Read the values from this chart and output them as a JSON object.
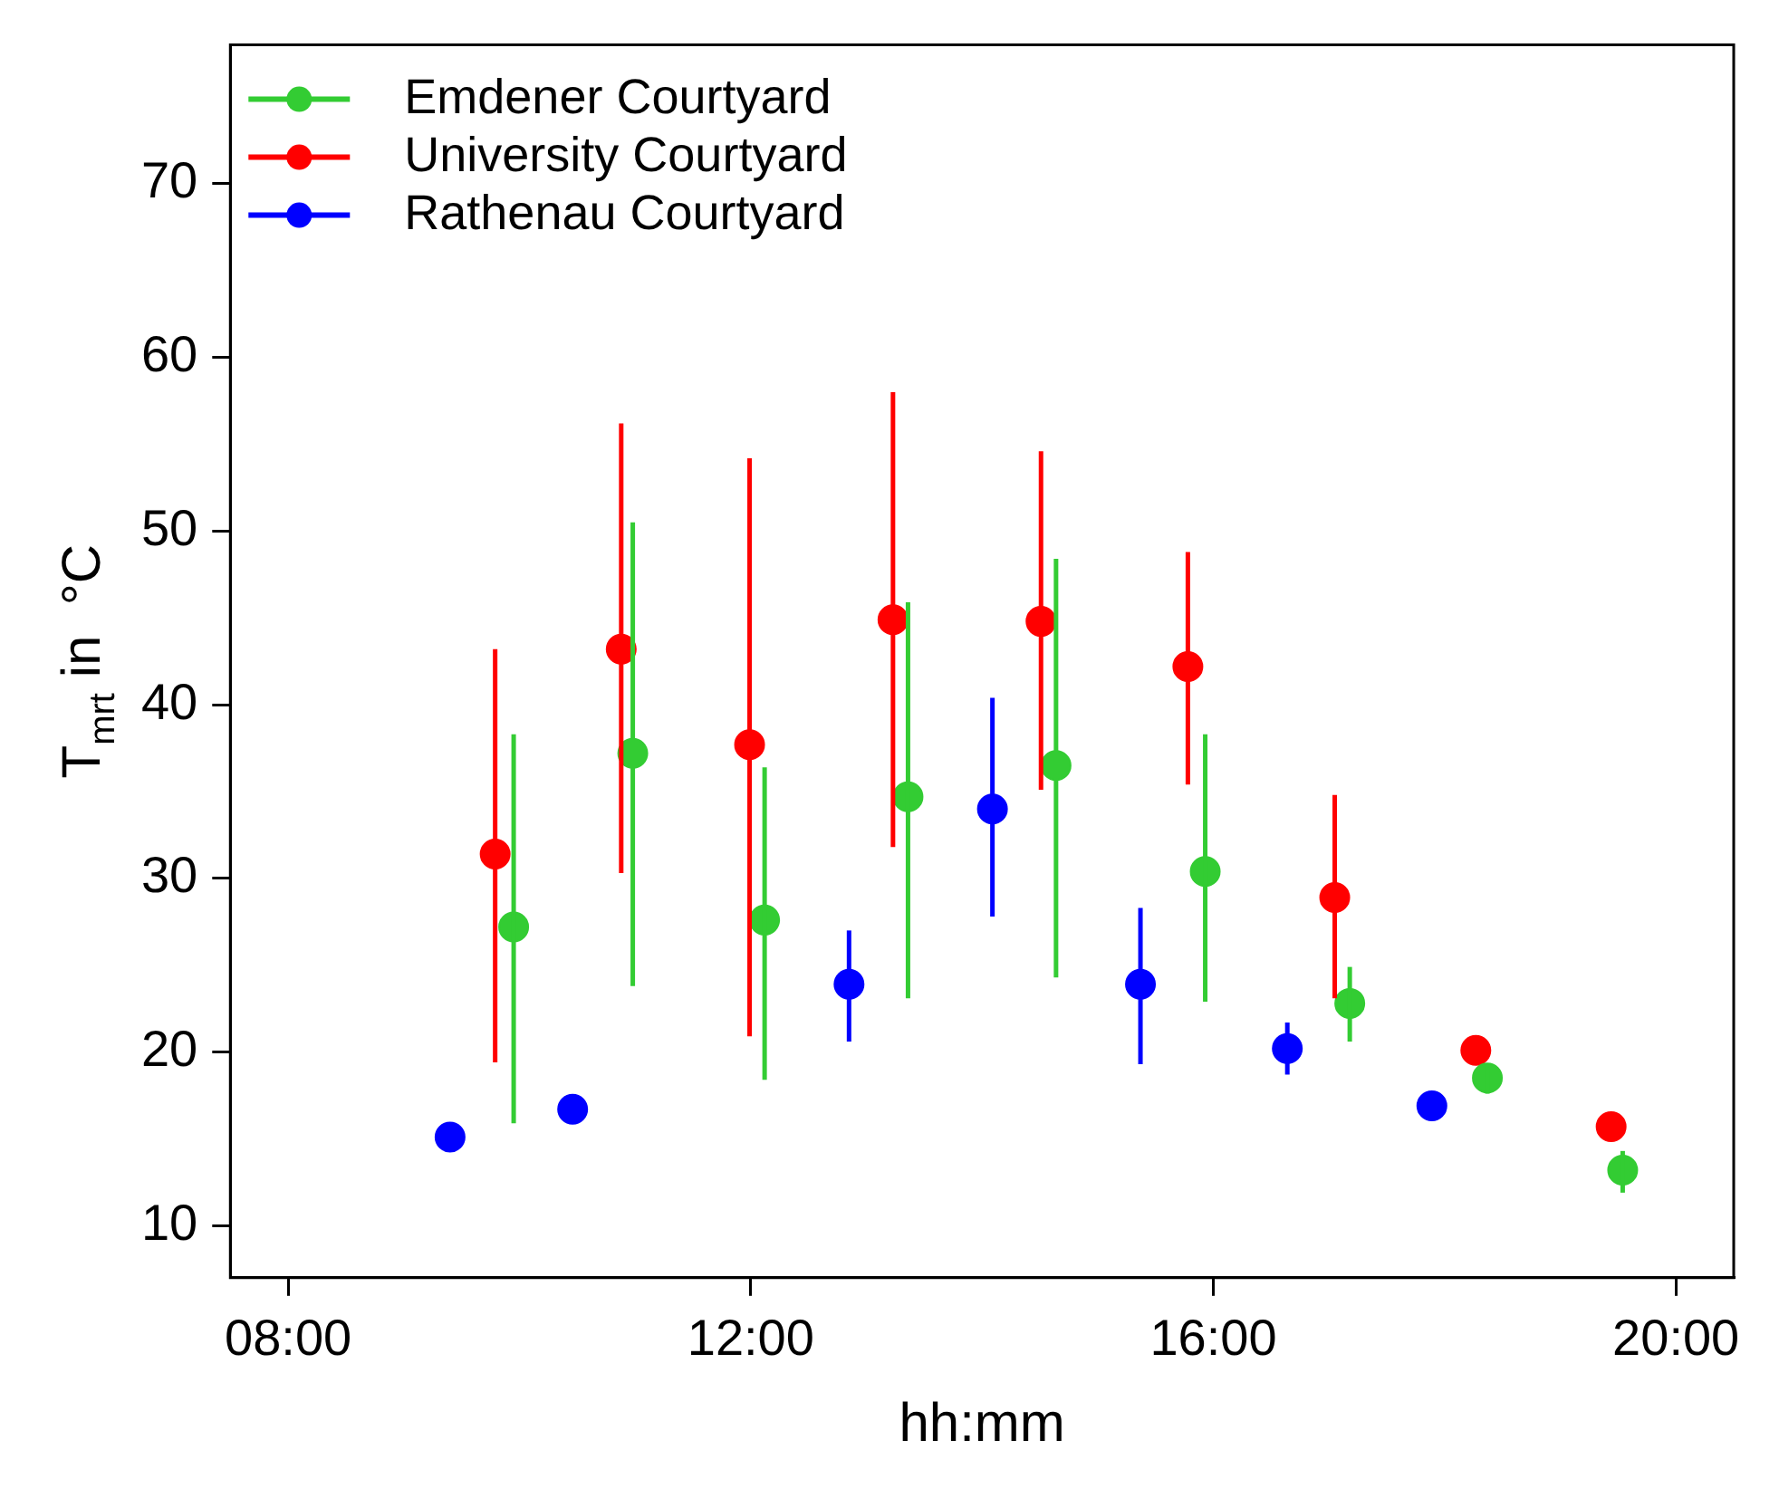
{
  "chart_data": {
    "type": "scatter",
    "xlabel": "hh:mm",
    "ylabel": "T$_{mrt}$ in  °C",
    "xlim": [
      7.5,
      20.5
    ],
    "xticks": [
      {
        "value": 8,
        "label": "08:00"
      },
      {
        "value": 12,
        "label": "12:00"
      },
      {
        "value": 16,
        "label": "16:00"
      },
      {
        "value": 20,
        "label": "20:00"
      }
    ],
    "ylim": [
      7,
      78
    ],
    "yticks": [
      10,
      20,
      30,
      40,
      50,
      60,
      70
    ],
    "grid": false,
    "legend": "top left",
    "marker": "circle",
    "series": [
      {
        "name": "Emdener Courtyard",
        "color": "#33cc33",
        "x": [
          9.95,
          10.98,
          12.12,
          13.36,
          14.64,
          15.93,
          17.18,
          18.37,
          19.54
        ],
        "values": [
          27.2,
          37.2,
          27.6,
          34.7,
          36.5,
          30.4,
          22.8,
          18.5,
          13.2
        ],
        "errors": [
          [
            15.9,
            38.3
          ],
          [
            23.8,
            50.5
          ],
          [
            18.4,
            36.4
          ],
          [
            23.1,
            45.9
          ],
          [
            24.3,
            48.4
          ],
          [
            22.9,
            38.3
          ],
          [
            20.6,
            24.9
          ],
          [
            17.6,
            19.1
          ],
          [
            11.9,
            14.3
          ]
        ]
      },
      {
        "name": "University Courtyard",
        "color": "#ff0000",
        "x": [
          9.79,
          10.88,
          11.99,
          13.23,
          14.51,
          15.78,
          17.05,
          18.27,
          19.44
        ],
        "values": [
          31.4,
          43.2,
          37.7,
          44.9,
          44.8,
          42.2,
          28.9,
          20.1,
          15.7
        ],
        "errors": [
          [
            19.4,
            43.2
          ],
          [
            30.3,
            56.2
          ],
          [
            20.9,
            54.2
          ],
          [
            31.8,
            58.0
          ],
          [
            35.1,
            54.6
          ],
          [
            35.4,
            48.8
          ],
          [
            23.1,
            34.8
          ],
          null,
          null
        ]
      },
      {
        "name": "Rathenau Courtyard",
        "color": "#0000ff",
        "x": [
          9.4,
          10.46,
          12.85,
          14.09,
          15.37,
          16.64,
          17.89
        ],
        "values": [
          15.1,
          16.7,
          23.9,
          34.0,
          23.9,
          20.2,
          16.9
        ],
        "errors": [
          null,
          null,
          [
            20.6,
            27.0
          ],
          [
            27.8,
            40.4
          ],
          [
            19.3,
            28.3
          ],
          [
            18.7,
            21.7
          ],
          null
        ]
      }
    ]
  }
}
